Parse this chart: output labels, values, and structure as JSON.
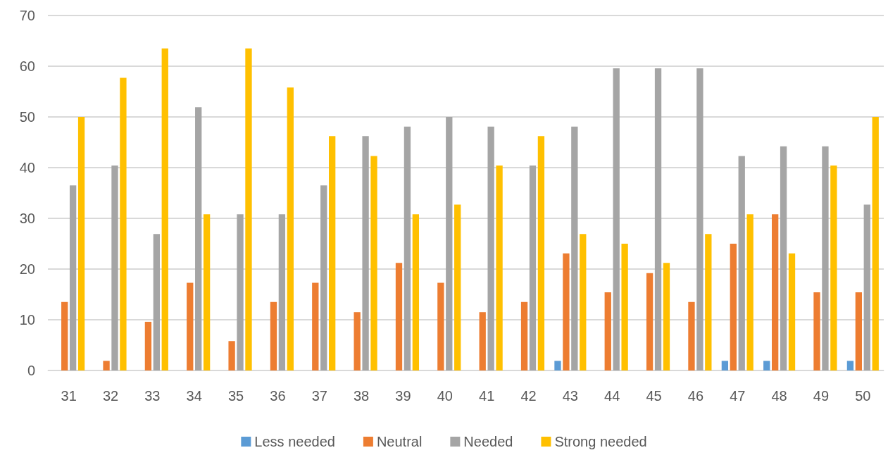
{
  "chart_data": {
    "type": "bar",
    "categories": [
      "31",
      "32",
      "33",
      "34",
      "35",
      "36",
      "37",
      "38",
      "39",
      "40",
      "41",
      "42",
      "43",
      "44",
      "45",
      "46",
      "47",
      "48",
      "49",
      "50"
    ],
    "series": [
      {
        "name": "Less needed",
        "color": "#5b9bd5",
        "values": [
          0,
          0,
          0,
          0,
          0,
          0,
          0,
          0,
          0,
          0,
          0,
          0,
          1.9,
          0,
          0,
          0,
          1.9,
          1.9,
          0,
          1.9
        ]
      },
      {
        "name": "Neutral",
        "color": "#ed7d31",
        "values": [
          13.5,
          1.9,
          9.6,
          17.3,
          5.8,
          13.5,
          17.3,
          11.5,
          21.2,
          17.3,
          11.5,
          13.5,
          23.1,
          15.4,
          19.2,
          13.5,
          25.0,
          30.8,
          15.4,
          15.4
        ]
      },
      {
        "name": "Needed",
        "color": "#a5a5a5",
        "values": [
          36.5,
          40.4,
          26.9,
          51.9,
          30.8,
          30.8,
          36.5,
          46.2,
          48.1,
          50.0,
          48.1,
          40.4,
          48.1,
          59.6,
          59.6,
          59.6,
          42.3,
          44.2,
          44.2,
          32.7
        ]
      },
      {
        "name": "Strong needed",
        "color": "#ffc000",
        "values": [
          50.0,
          57.7,
          63.5,
          30.8,
          63.5,
          55.8,
          46.2,
          42.3,
          30.8,
          32.7,
          40.4,
          46.2,
          26.9,
          25.0,
          21.2,
          26.9,
          30.8,
          23.1,
          40.4,
          50.0
        ]
      }
    ],
    "ylim": [
      0,
      70
    ],
    "yticks": [
      0,
      10,
      20,
      30,
      40,
      50,
      60,
      70
    ],
    "grid": "y",
    "legend": "bottom"
  }
}
